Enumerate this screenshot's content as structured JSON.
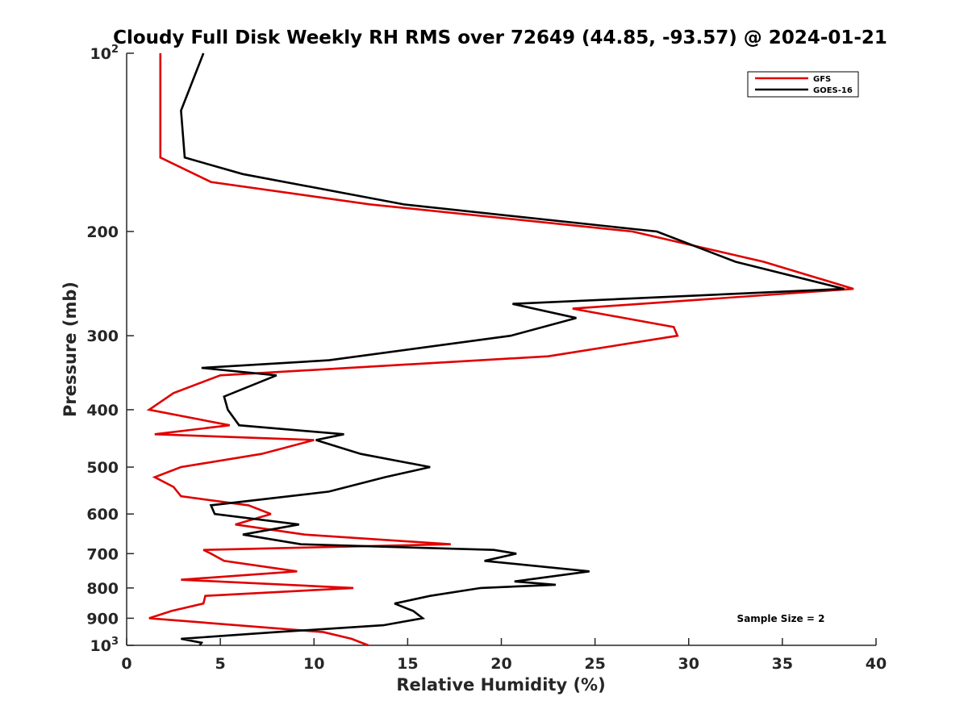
{
  "chart_data": {
    "type": "line",
    "title": "Cloudy Full Disk Weekly RH RMS over 72649 (44.85, -93.57) @ 2024-01-21",
    "xlabel": "Relative Humidity (%)",
    "ylabel": "Pressure (mb)",
    "xlim": [
      0,
      40
    ],
    "ylim": [
      100,
      1000
    ],
    "y_scale": "log",
    "y_reversed": true,
    "x_ticks": [
      "0",
      "5",
      "10",
      "15",
      "20",
      "25",
      "30",
      "35",
      "40"
    ],
    "y_ticks": [
      {
        "value": 100,
        "base": "10",
        "exp": "2"
      },
      {
        "value": 200,
        "label": "200"
      },
      {
        "value": 300,
        "label": "300"
      },
      {
        "value": 400,
        "label": "400"
      },
      {
        "value": 500,
        "label": "500"
      },
      {
        "value": 600,
        "label": "600"
      },
      {
        "value": 700,
        "label": "700"
      },
      {
        "value": 800,
        "label": "800"
      },
      {
        "value": 900,
        "label": "900"
      },
      {
        "value": 1000,
        "base": "10",
        "exp": "3"
      }
    ],
    "grid": false,
    "legend_position": "top-right",
    "annotation": "Sample Size = 2",
    "series": [
      {
        "name": "GFS",
        "color": "#e00000",
        "points": [
          [
            1.8,
            100
          ],
          [
            1.8,
            125
          ],
          [
            1.8,
            150
          ],
          [
            4.5,
            165
          ],
          [
            13,
            180
          ],
          [
            27,
            200
          ],
          [
            34,
            225
          ],
          [
            38.8,
            250
          ],
          [
            23.8,
            270
          ],
          [
            29.2,
            290
          ],
          [
            29.4,
            300
          ],
          [
            22.5,
            325
          ],
          [
            5,
            350
          ],
          [
            2.5,
            375
          ],
          [
            1.2,
            400
          ],
          [
            5.5,
            425
          ],
          [
            1.5,
            440
          ],
          [
            10,
            450
          ],
          [
            7.2,
            475
          ],
          [
            2.9,
            500
          ],
          [
            1.5,
            520
          ],
          [
            2.5,
            540
          ],
          [
            2.9,
            560
          ],
          [
            6.5,
            580
          ],
          [
            7.7,
            600
          ],
          [
            5.8,
            625
          ],
          [
            9.5,
            650
          ],
          [
            17.3,
            675
          ],
          [
            4.1,
            690
          ],
          [
            4.5,
            700
          ],
          [
            5.2,
            720
          ],
          [
            9.1,
            750
          ],
          [
            2.9,
            775
          ],
          [
            12.1,
            800
          ],
          [
            4.2,
            825
          ],
          [
            4.1,
            850
          ],
          [
            2.4,
            875
          ],
          [
            1.2,
            900
          ],
          [
            10.5,
            950
          ],
          [
            12,
            975
          ],
          [
            12.9,
            1000
          ]
        ]
      },
      {
        "name": "GOES-16",
        "color": "#000000",
        "points": [
          [
            4.1,
            100
          ],
          [
            2.9,
            125
          ],
          [
            3.1,
            150
          ],
          [
            6.2,
            160
          ],
          [
            14.8,
            180
          ],
          [
            28.3,
            200
          ],
          [
            32.5,
            225
          ],
          [
            38.3,
            250
          ],
          [
            20.6,
            265
          ],
          [
            24,
            280
          ],
          [
            20.5,
            300
          ],
          [
            10.8,
            330
          ],
          [
            4,
            340
          ],
          [
            8,
            350
          ],
          [
            5.2,
            380
          ],
          [
            5.4,
            400
          ],
          [
            6,
            425
          ],
          [
            11.6,
            440
          ],
          [
            10.1,
            450
          ],
          [
            12.5,
            475
          ],
          [
            16.2,
            500
          ],
          [
            13.8,
            520
          ],
          [
            10.8,
            550
          ],
          [
            4.5,
            580
          ],
          [
            4.7,
            600
          ],
          [
            9.2,
            625
          ],
          [
            6.2,
            650
          ],
          [
            9.3,
            675
          ],
          [
            19.6,
            690
          ],
          [
            20.8,
            700
          ],
          [
            19.1,
            720
          ],
          [
            24.7,
            750
          ],
          [
            20.7,
            780
          ],
          [
            22.9,
            790
          ],
          [
            18.9,
            800
          ],
          [
            16.2,
            825
          ],
          [
            14.3,
            850
          ],
          [
            15.3,
            875
          ],
          [
            15.8,
            900
          ],
          [
            13.7,
            925
          ],
          [
            8,
            950
          ],
          [
            2.9,
            975
          ],
          [
            4,
            990
          ],
          [
            3.9,
            1000
          ]
        ]
      }
    ]
  }
}
